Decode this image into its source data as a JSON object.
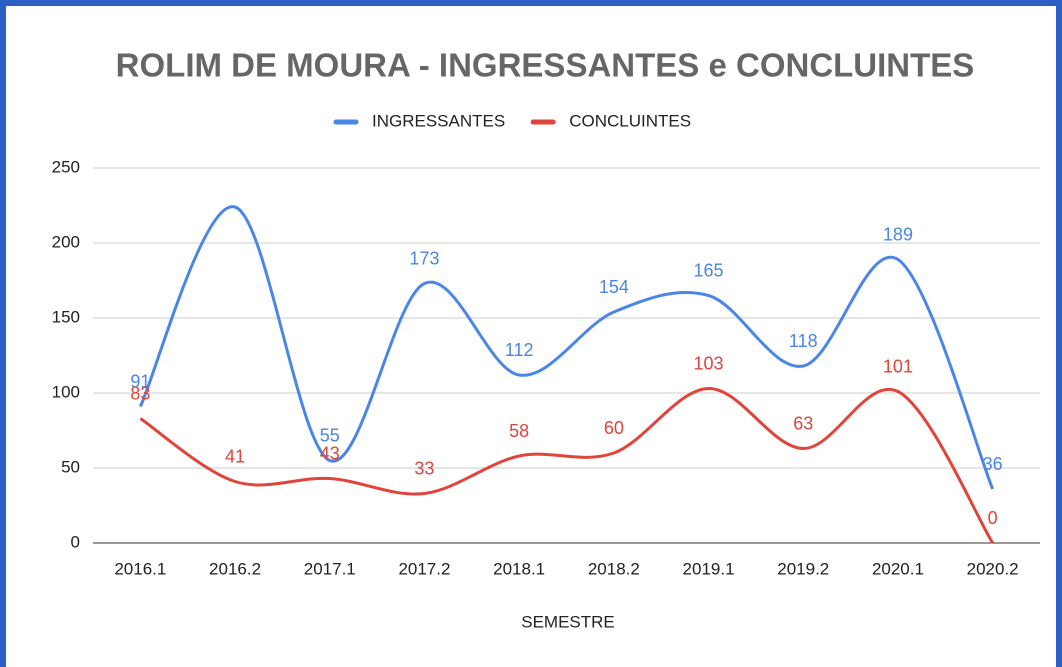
{
  "chart_data": {
    "type": "line",
    "title": "ROLIM DE MOURA - INGRESSANTES e CONCLUINTES",
    "x_label": "SEMESTRE",
    "categories": [
      "2016.1",
      "2016.2",
      "2017.1",
      "2017.2",
      "2018.1",
      "2018.2",
      "2019.1",
      "2019.2",
      "2020.1",
      "2020.2"
    ],
    "series": [
      {
        "name": "INGRESSANTES",
        "color": "#4a86e8",
        "values": [
          91,
          224,
          55,
          173,
          112,
          154,
          165,
          118,
          189,
          36
        ],
        "value_labels": [
          "91",
          null,
          "55",
          "173",
          "112",
          "154",
          "165",
          "118",
          "189",
          "36"
        ]
      },
      {
        "name": "CONCLUINTES",
        "color": "#e0443a",
        "values": [
          83,
          41,
          43,
          33,
          58,
          60,
          103,
          63,
          101,
          0
        ],
        "value_labels": [
          "83",
          "41",
          "43",
          "33",
          "58",
          "60",
          "103",
          "63",
          "101",
          "0"
        ]
      }
    ],
    "ylim": [
      0,
      250
    ],
    "yticks": [
      0,
      50,
      100,
      150,
      200,
      250
    ],
    "grid": true,
    "legend": "top",
    "smooth": true
  }
}
